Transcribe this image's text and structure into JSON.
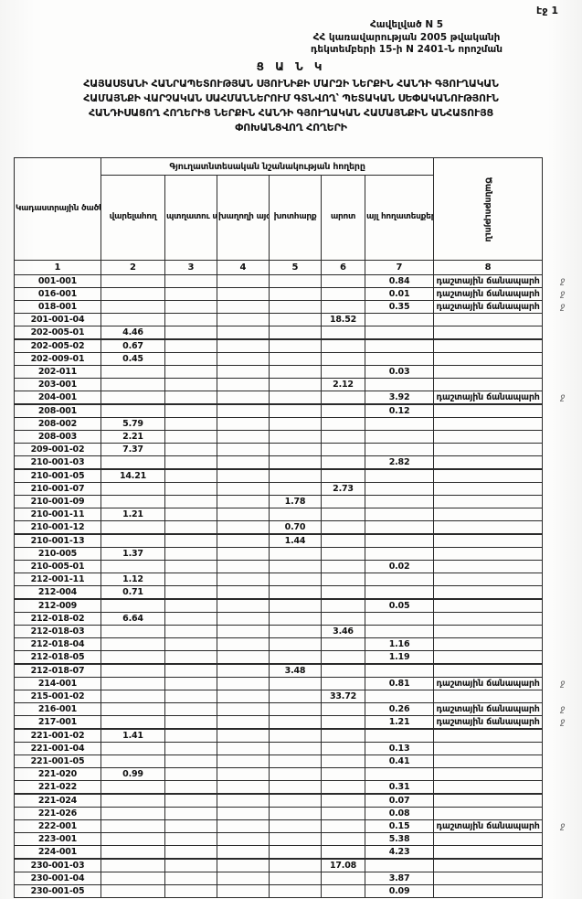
{
  "colors": {
    "paper": "#fdfdfc",
    "ink": "#111111",
    "border": "#2a2a2a",
    "margin_mark": "#666666"
  },
  "page_label": "էջ 1",
  "appendix": {
    "line1": "Հավելված N 5",
    "line2": "ՀՀ կառավարության 2005 թվականի",
    "line3": "դեկտեմբերի 15-ի N 2401-Ն որոշման"
  },
  "title": {
    "heading": "Ց Ա Ն Կ",
    "line1": "ՀԱՅԱՍՏԱՆԻ ՀԱՆՐԱՊԵՏՈՒԹՅԱՆ ՍՅՈՒՆԻՔԻ ՄԱՐԶԻ ՆԵՐՔԻՆ ՀԱՆԴԻ ԳՅՈՒՂԱԿԱՆ",
    "line2": "ՀԱՄԱՅՆՔԻ ՎԱՐՉԱԿԱՆ ՍԱՀՄԱՆՆԵՐՈՒՄ ԳՏՆՎՈՂ՝ ՊԵՏԱԿԱՆ ՍԵՓԱԿԱՆՈՒԹՅՈՒՆ",
    "line3": "ՀԱՆԴԻՍԱՑՈՂ ՀՈՂԵՐԻՑ ՆԵՐՔԻՆ ՀԱՆԴԻ ԳՅՈՒՂԱԿԱՆ ՀԱՄԱՅՆՔԻՆ ԱՆՀԱՏՈՒՅՑ",
    "line4": "ՓՈԽԱՆՑՎՈՂ ՀՈՂԵՐԻ"
  },
  "table": {
    "group_header": "Գյուղատնտեսական նշանակության հողերը",
    "columns": {
      "code": "Կադաստրային ծածկագիրը",
      "arable": "վարելահող",
      "orchard": "պտղատու այգի",
      "vineyard": "խաղողի այգի",
      "hayfield": "խոտհարք",
      "pasture": "արոտ",
      "other": "այլ հողատեսքեր",
      "note": "Ծանոթություն"
    },
    "column_numbers": [
      "1",
      "2",
      "3",
      "4",
      "5",
      "6",
      "7",
      "8"
    ],
    "field_road_note": "դաշտային ճանապարհ",
    "rows": [
      {
        "code": "001-001",
        "other": "0.84",
        "note": "դաշտային ճանապարհ",
        "mark": "ջ"
      },
      {
        "code": "016-001",
        "other": "0.01",
        "note": "դաշտային ճանապարհ",
        "mark": "ջ"
      },
      {
        "code": "018-001",
        "other": "0.35",
        "note": "դաշտային ճանապարհ",
        "mark": "ջ"
      },
      {
        "code": "201-001-04",
        "pasture": "18.52"
      },
      {
        "code": "202-005-01",
        "arable": "4.46"
      },
      {
        "code": "202-005-02",
        "arable": "0.67"
      },
      {
        "code": "202-009-01",
        "arable": "0.45"
      },
      {
        "code": "202-011",
        "other": "0.03"
      },
      {
        "code": "203-001",
        "pasture": "2.12"
      },
      {
        "code": "204-001",
        "other": "3.92",
        "note": "դաշտային ճանապարհ",
        "mark": "ջ"
      },
      {
        "code": "208-001",
        "other": "0.12"
      },
      {
        "code": "208-002",
        "arable": "5.79"
      },
      {
        "code": "208-003",
        "arable": "2.21"
      },
      {
        "code": "209-001-02",
        "arable": "7.37"
      },
      {
        "code": "210-001-03",
        "other": "2.82"
      },
      {
        "code": "210-001-05",
        "arable": "14.21"
      },
      {
        "code": "210-001-07",
        "pasture": "2.73"
      },
      {
        "code": "210-001-09",
        "hayfield": "1.78"
      },
      {
        "code": "210-001-11",
        "arable": "1.21"
      },
      {
        "code": "210-001-12",
        "hayfield": "0.70"
      },
      {
        "code": "210-001-13",
        "hayfield": "1.44"
      },
      {
        "code": "210-005",
        "arable": "1.37"
      },
      {
        "code": "210-005-01",
        "other": "0.02"
      },
      {
        "code": "212-001-11",
        "arable": "1.12"
      },
      {
        "code": "212-004",
        "arable": "0.71"
      },
      {
        "code": "212-009",
        "other": "0.05"
      },
      {
        "code": "212-018-02",
        "arable": "6.64"
      },
      {
        "code": "212-018-03",
        "pasture": "3.46"
      },
      {
        "code": "212-018-04",
        "other": "1.16"
      },
      {
        "code": "212-018-05",
        "other": "1.19"
      },
      {
        "code": "212-018-07",
        "hayfield": "3.48"
      },
      {
        "code": "214-001",
        "other": "0.81",
        "note": "դաշտային ճանապարհ",
        "mark": "ջ"
      },
      {
        "code": "215-001-02",
        "pasture": "33.72"
      },
      {
        "code": "216-001",
        "other": "0.26",
        "note": "դաշտային ճանապարհ",
        "mark": "ջ"
      },
      {
        "code": "217-001",
        "other": "1.21",
        "note": "դաշտային ճանապարհ",
        "mark": "ջ"
      },
      {
        "code": "221-001-02",
        "arable": "1.41"
      },
      {
        "code": "221-001-04",
        "other": "0.13"
      },
      {
        "code": "221-001-05",
        "other": "0.41"
      },
      {
        "code": "221-020",
        "arable": "0.99"
      },
      {
        "code": "221-022",
        "other": "0.31"
      },
      {
        "code": "221-024",
        "other": "0.07"
      },
      {
        "code": "221-026",
        "other": "0.08"
      },
      {
        "code": "222-001",
        "other": "0.15",
        "note": "դաշտային ճանապարհ",
        "mark": "ջ"
      },
      {
        "code": "223-001",
        "other": "5.38"
      },
      {
        "code": "224-001",
        "other": "4.23"
      },
      {
        "code": "230-001-03",
        "pasture": "17.08"
      },
      {
        "code": "230-001-04",
        "other": "3.87"
      },
      {
        "code": "230-001-05",
        "other": "0.09"
      }
    ]
  }
}
